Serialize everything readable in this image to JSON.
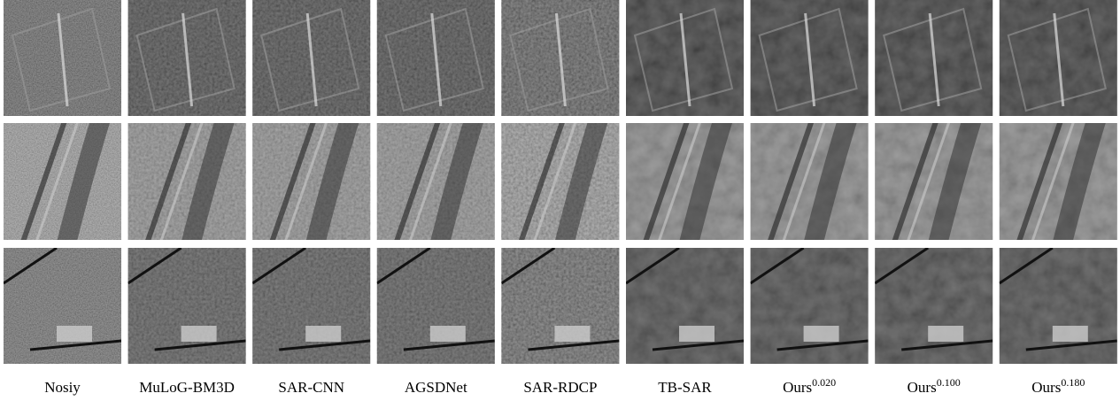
{
  "columns": [
    {
      "label": "Nosiy"
    },
    {
      "label": "MuLoG-BM3D"
    },
    {
      "label": "SAR-CNN"
    },
    {
      "label": "AGSDNet"
    },
    {
      "label": "SAR-RDCP"
    },
    {
      "label": "TB-SAR"
    },
    {
      "label": "Ours",
      "sup": "0.020"
    },
    {
      "label": "Ours",
      "sup": "0.100"
    },
    {
      "label": "Ours",
      "sup": "0.180"
    }
  ]
}
